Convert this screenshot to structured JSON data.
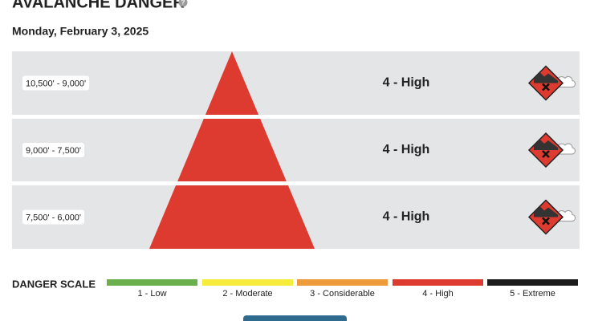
{
  "header": {
    "title": "AVALANCHE DANGER",
    "date": "Monday, February 3, 2025"
  },
  "rows": [
    {
      "elevation": "10,500' - 9,000'",
      "rating": "4 - High"
    },
    {
      "elevation": "9,000' - 7,500'",
      "rating": "4 - High"
    },
    {
      "elevation": "7,500' - 6,000'",
      "rating": "4 - High"
    }
  ],
  "scale": {
    "title": "DANGER SCALE",
    "items": [
      {
        "label": "1 - Low",
        "color": "#6ab04c"
      },
      {
        "label": "2 - Moderate",
        "color": "#f5ec3c"
      },
      {
        "label": "3 - Considerable",
        "color": "#ec9a3a"
      },
      {
        "label": "4 - High",
        "color": "#dd3a30"
      },
      {
        "label": "5 - Extreme",
        "color": "#1c1c1c"
      }
    ]
  }
}
